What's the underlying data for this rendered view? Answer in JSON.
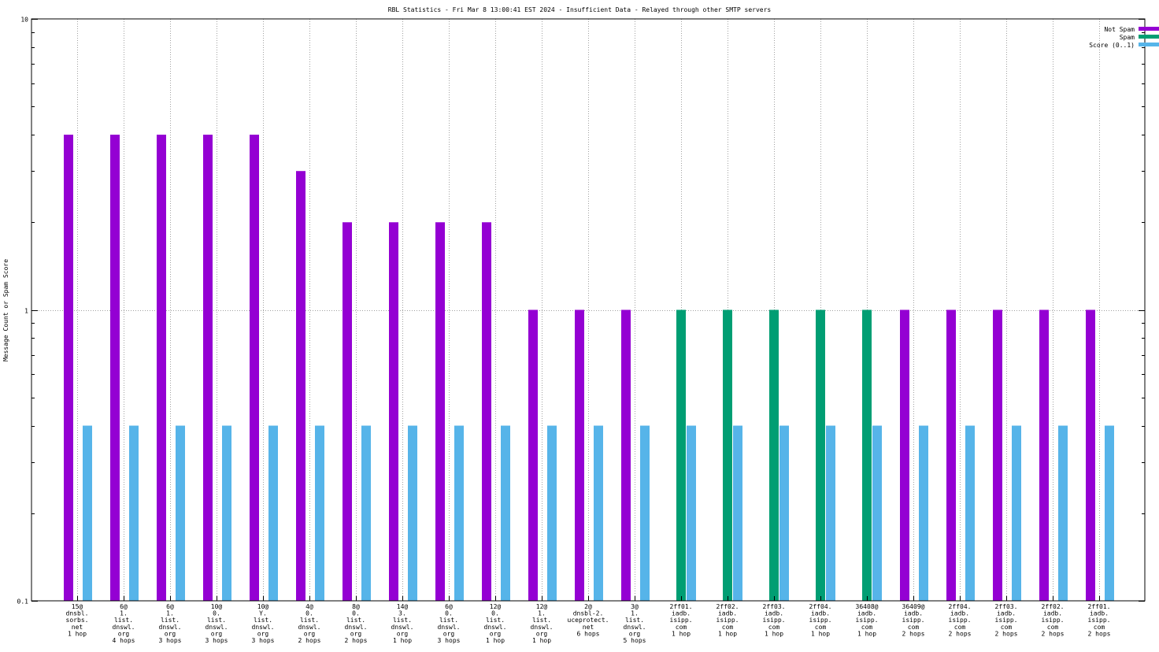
{
  "chart_data": {
    "type": "bar",
    "title": "RBL Statistics - Fri Mar  8 13:00:41 EST 2024 - Insufficient Data - Relayed through other SMTP servers",
    "xlabel": "",
    "ylabel": "Message Count or Spam Score",
    "yscale": "log",
    "ylim": [
      0.1,
      10
    ],
    "yticks": [
      {
        "value": 0.1,
        "label": "0.1"
      },
      {
        "value": 1,
        "label": "1"
      },
      {
        "value": 10,
        "label": "10"
      }
    ],
    "grid": "dotted vertical at each category, horizontal at 1",
    "legend_position": "top-right",
    "categories": [
      [
        "15@",
        "dnsbl.",
        "sorbs.",
        "net",
        "1 hop"
      ],
      [
        "6@",
        "1.",
        "list.",
        "dnswl.",
        "org",
        "4 hops"
      ],
      [
        "6@",
        "1.",
        "list.",
        "dnswl.",
        "org",
        "3 hops"
      ],
      [
        "10@",
        "0.",
        "list.",
        "dnswl.",
        "org",
        "3 hops"
      ],
      [
        "10@",
        "Y.",
        "list.",
        "dnswl.",
        "org",
        "3 hops"
      ],
      [
        "4@",
        "0.",
        "list.",
        "dnswl.",
        "org",
        "2 hops"
      ],
      [
        "8@",
        "0.",
        "list.",
        "dnswl.",
        "org",
        "2 hops"
      ],
      [
        "14@",
        "3.",
        "list.",
        "dnswl.",
        "org",
        "1 hop"
      ],
      [
        "6@",
        "0.",
        "list.",
        "dnswl.",
        "org",
        "3 hops"
      ],
      [
        "12@",
        "0.",
        "list.",
        "dnswl.",
        "org",
        "1 hop"
      ],
      [
        "12@",
        "1.",
        "list.",
        "dnswl.",
        "org",
        "1 hop"
      ],
      [
        "2@",
        "dnsbl-2.",
        "uceprotect.",
        "net",
        "6 hops"
      ],
      [
        "3@",
        "1.",
        "list.",
        "dnswl.",
        "org",
        "5 hops"
      ],
      [
        "2ff01.",
        "iadb.",
        "isipp.",
        "com",
        "1 hop"
      ],
      [
        "2ff02.",
        "iadb.",
        "isipp.",
        "com",
        "1 hop"
      ],
      [
        "2ff03.",
        "iadb.",
        "isipp.",
        "com",
        "1 hop"
      ],
      [
        "2ff04.",
        "iadb.",
        "isipp.",
        "com",
        "1 hop"
      ],
      [
        "36408@",
        "iadb.",
        "isipp.",
        "com",
        "1 hop"
      ],
      [
        "36409@",
        "iadb.",
        "isipp.",
        "com",
        "2 hops"
      ],
      [
        "2ff04.",
        "iadb.",
        "isipp.",
        "com",
        "2 hops"
      ],
      [
        "2ff03.",
        "iadb.",
        "isipp.",
        "com",
        "2 hops"
      ],
      [
        "2ff02.",
        "iadb.",
        "isipp.",
        "com",
        "2 hops"
      ],
      [
        "2ff01.",
        "iadb.",
        "isipp.",
        "com",
        "2 hops"
      ]
    ],
    "series": [
      {
        "name": "Not Spam",
        "color": "#9400d3",
        "values": [
          4,
          4,
          4,
          4,
          4,
          3,
          2,
          2,
          2,
          2,
          1,
          1,
          1,
          0,
          0,
          0,
          0,
          0,
          1,
          1,
          1,
          1,
          1
        ]
      },
      {
        "name": "Spam",
        "color": "#009e73",
        "values": [
          0,
          0,
          0,
          0,
          0,
          0,
          0,
          0,
          0,
          0,
          0,
          0,
          0,
          1,
          1,
          1,
          1,
          1,
          0,
          0,
          0,
          0,
          0
        ]
      },
      {
        "name": "Score (0..1)",
        "color": "#56b4e9",
        "values": [
          0.4,
          0.4,
          0.4,
          0.4,
          0.4,
          0.4,
          0.4,
          0.4,
          0.4,
          0.4,
          0.4,
          0.4,
          0.4,
          0.4,
          0.4,
          0.4,
          0.4,
          0.4,
          0.4,
          0.4,
          0.4,
          0.4,
          0.4
        ]
      }
    ]
  }
}
